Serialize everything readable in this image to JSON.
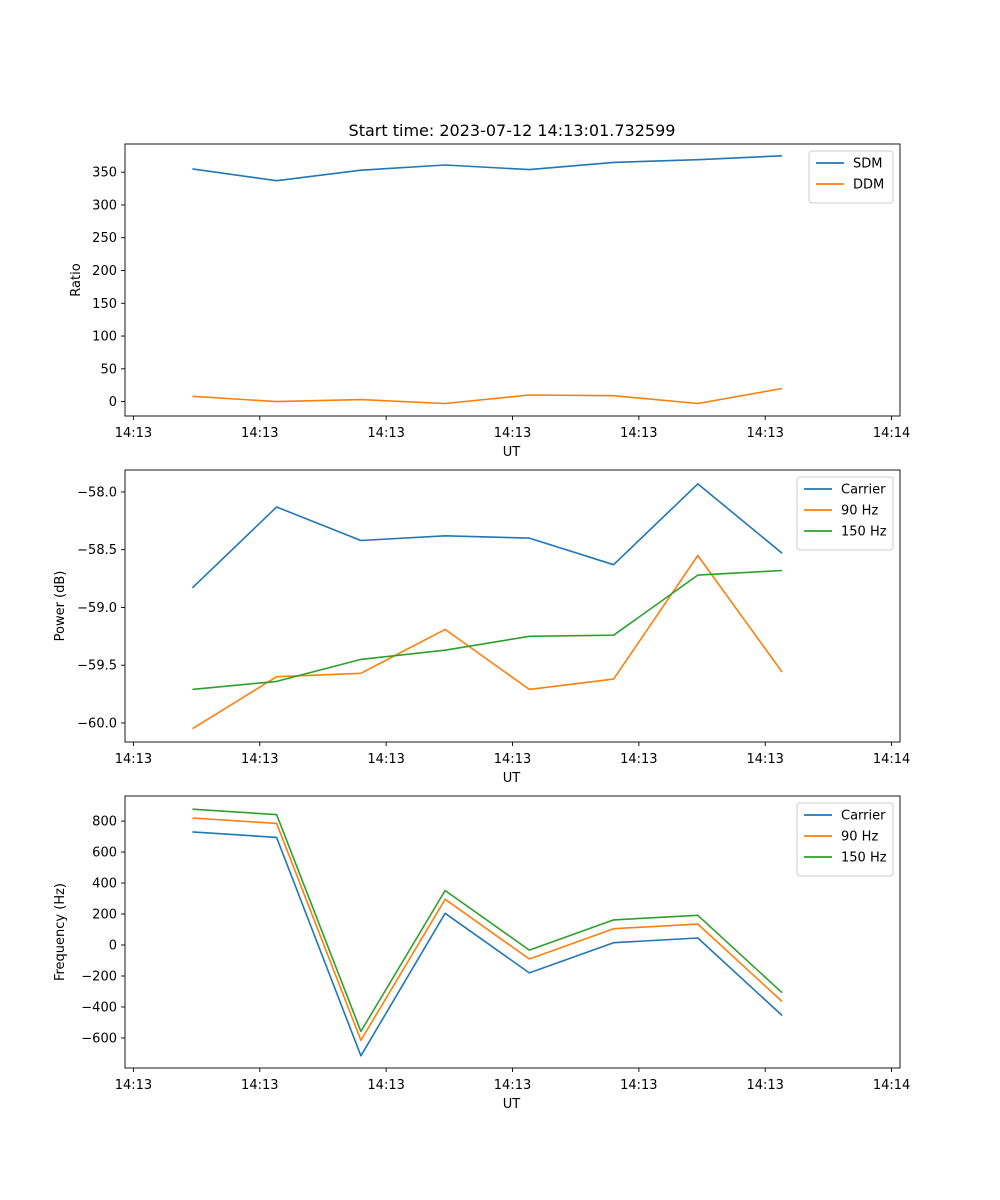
{
  "figure_title": "Start time: 2023-07-12 14:13:01.732599",
  "colors": {
    "blue": "#1f77b4",
    "orange": "#ff7f0e",
    "green": "#2ca02c"
  },
  "chart_data": [
    {
      "type": "line",
      "title": "Start time: 2023-07-12 14:13:01.732599",
      "xlabel": "UT",
      "ylabel": "Ratio",
      "x": [
        1,
        2,
        3,
        4,
        5,
        6,
        7,
        8
      ],
      "xlim": [
        0.2,
        9.4
      ],
      "xticks": [
        0.3,
        1.8,
        3.3,
        4.8,
        6.3,
        7.8,
        9.3
      ],
      "xtick_labels": [
        "14:13",
        "14:13",
        "14:13",
        "14:13",
        "14:13",
        "14:13",
        "14:14"
      ],
      "ylim": [
        -22,
        393
      ],
      "yticks": [
        0,
        50,
        100,
        150,
        200,
        250,
        300,
        350
      ],
      "ytick_labels": [
        "0",
        "50",
        "100",
        "150",
        "200",
        "250",
        "300",
        "350"
      ],
      "legend_position": "top-right",
      "series": [
        {
          "name": "SDM",
          "color": "#1f77b4",
          "values": [
            355,
            337,
            353,
            361,
            354,
            365,
            369,
            375
          ]
        },
        {
          "name": "DDM",
          "color": "#ff7f0e",
          "values": [
            8,
            0,
            3,
            -3,
            10,
            9,
            -3,
            20
          ]
        }
      ]
    },
    {
      "type": "line",
      "title": "",
      "xlabel": "UT",
      "ylabel": "Power (dB)",
      "x": [
        1,
        2,
        3,
        4,
        5,
        6,
        7,
        8
      ],
      "xlim": [
        0.2,
        9.4
      ],
      "xticks": [
        0.3,
        1.8,
        3.3,
        4.8,
        6.3,
        7.8,
        9.3
      ],
      "xtick_labels": [
        "14:13",
        "14:13",
        "14:13",
        "14:13",
        "14:13",
        "14:13",
        "14:14"
      ],
      "ylim": [
        -60.165,
        -57.81
      ],
      "yticks": [
        -60.0,
        -59.5,
        -59.0,
        -58.5,
        -58.0
      ],
      "ytick_labels": [
        "−60.0",
        "−59.5",
        "−59.0",
        "−58.5",
        "−58.0"
      ],
      "legend_position": "top-right",
      "series": [
        {
          "name": "Carrier",
          "color": "#1f77b4",
          "values": [
            -58.83,
            -58.13,
            -58.42,
            -58.38,
            -58.4,
            -58.63,
            -57.93,
            -58.53
          ]
        },
        {
          "name": "90 Hz",
          "color": "#ff7f0e",
          "values": [
            -60.05,
            -59.6,
            -59.57,
            -59.19,
            -59.71,
            -59.62,
            -58.55,
            -59.56
          ]
        },
        {
          "name": "150 Hz",
          "color": "#2ca02c",
          "values": [
            -59.71,
            -59.64,
            -59.45,
            -59.37,
            -59.25,
            -59.24,
            -58.72,
            -58.68
          ]
        }
      ]
    },
    {
      "type": "line",
      "title": "",
      "xlabel": "UT",
      "ylabel": "Frequency (Hz)",
      "x": [
        1,
        2,
        3,
        4,
        5,
        6,
        7,
        8
      ],
      "xlim": [
        0.2,
        9.4
      ],
      "xticks": [
        0.3,
        1.8,
        3.3,
        4.8,
        6.3,
        7.8,
        9.3
      ],
      "xtick_labels": [
        "14:13",
        "14:13",
        "14:13",
        "14:13",
        "14:13",
        "14:13",
        "14:14"
      ],
      "ylim": [
        -794,
        962
      ],
      "yticks": [
        -600,
        -400,
        -200,
        0,
        200,
        400,
        600,
        800
      ],
      "ytick_labels": [
        "−600",
        "−400",
        "−200",
        "0",
        "200",
        "400",
        "600",
        "800"
      ],
      "legend_position": "top-right",
      "series": [
        {
          "name": "Carrier",
          "color": "#1f77b4",
          "values": [
            730,
            695,
            -715,
            205,
            -180,
            15,
            45,
            -455
          ]
        },
        {
          "name": "90 Hz",
          "color": "#ff7f0e",
          "values": [
            820,
            785,
            -615,
            295,
            -90,
            105,
            135,
            -365
          ]
        },
        {
          "name": "150 Hz",
          "color": "#2ca02c",
          "values": [
            877,
            842,
            -558,
            352,
            -33,
            162,
            192,
            -308
          ]
        }
      ]
    }
  ]
}
